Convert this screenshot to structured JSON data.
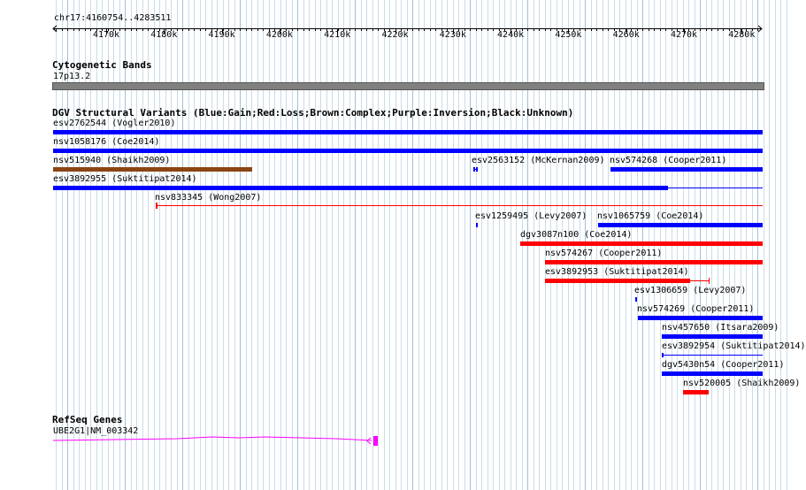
{
  "ruler": {
    "label": "chr17:4160754..4283511",
    "ticks": [
      "4170k",
      "4180k",
      "4190k",
      "4200k",
      "4210k",
      "4220k",
      "4230k",
      "4240k",
      "4250k",
      "4260k",
      "4270k",
      "4280k"
    ]
  },
  "cytoband": {
    "title": "Cytogenetic Bands",
    "band": "17p13.2"
  },
  "dgv": {
    "title": "DGV Structural Variants (Blue:Gain;Red:Loss;Brown:Complex;Purple:Inversion;Black:Unknown)",
    "features": [
      {
        "label": "esv2762544 (Vogler2010)",
        "color": "#0000ff"
      },
      {
        "label": "nsv1058176 (Coe2014)",
        "color": "#0000ff"
      },
      {
        "label": "nsv515940 (Shaikh2009)",
        "color": "#8b4513"
      },
      {
        "label": "esv2563152 (McKernan2009)",
        "color": "#0000ff"
      },
      {
        "label": "nsv574268 (Cooper2011)",
        "color": "#0000ff"
      },
      {
        "label": "esv3892955 (Suktitipat2014)",
        "color": "#0000ff"
      },
      {
        "label": "nsv833345 (Wong2007)",
        "color": "#ff0000"
      },
      {
        "label": "esv1259495 (Levy2007)",
        "color": "#0000ff"
      },
      {
        "label": "nsv1065759 (Coe2014)",
        "color": "#0000ff"
      },
      {
        "label": "dgv3087n100 (Coe2014)",
        "color": "#ff0000"
      },
      {
        "label": "nsv574267 (Cooper2011)",
        "color": "#ff0000"
      },
      {
        "label": "esv3892953 (Suktitipat2014)",
        "color": "#ff0000"
      },
      {
        "label": "esv1306659 (Levy2007)",
        "color": "#0000ff"
      },
      {
        "label": "nsv574269 (Cooper2011)",
        "color": "#0000ff"
      },
      {
        "label": "nsv457650 (Itsara2009)",
        "color": "#0000ff"
      },
      {
        "label": "esv3892954 (Suktitipat2014)",
        "color": "#0000ff"
      },
      {
        "label": "dgv5430n54 (Cooper2011)",
        "color": "#0000ff"
      },
      {
        "label": "nsv520005 (Shaikh2009)",
        "color": "#ff0000"
      }
    ]
  },
  "refseq": {
    "title": "RefSeq Genes",
    "gene": "UBE2G1|NM_003342",
    "color": "#ff00ff"
  }
}
